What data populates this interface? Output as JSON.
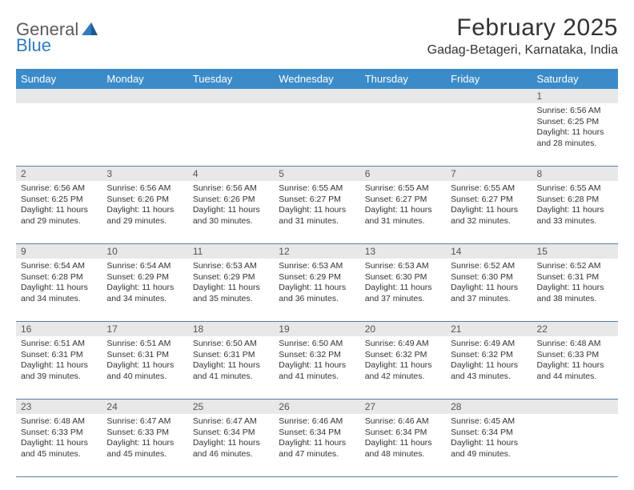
{
  "logo": {
    "text1": "General",
    "text2": "Blue"
  },
  "header": {
    "month_title": "February 2025",
    "location": "Gadag-Betageri, Karnataka, India"
  },
  "colors": {
    "header_bg": "#3b8bc9",
    "header_text": "#ffffff",
    "daynum_bg": "#e8e8e8",
    "week_border": "#5a7fa5",
    "page_bg": "#ffffff",
    "text": "#333333",
    "logo_gray": "#5a5a5a",
    "logo_blue": "#2f7bbf"
  },
  "day_headers": [
    "Sunday",
    "Monday",
    "Tuesday",
    "Wednesday",
    "Thursday",
    "Friday",
    "Saturday"
  ],
  "weeks": [
    [
      {
        "num": "",
        "sunrise": "",
        "sunset": "",
        "daylight": ""
      },
      {
        "num": "",
        "sunrise": "",
        "sunset": "",
        "daylight": ""
      },
      {
        "num": "",
        "sunrise": "",
        "sunset": "",
        "daylight": ""
      },
      {
        "num": "",
        "sunrise": "",
        "sunset": "",
        "daylight": ""
      },
      {
        "num": "",
        "sunrise": "",
        "sunset": "",
        "daylight": ""
      },
      {
        "num": "",
        "sunrise": "",
        "sunset": "",
        "daylight": ""
      },
      {
        "num": "1",
        "sunrise": "Sunrise: 6:56 AM",
        "sunset": "Sunset: 6:25 PM",
        "daylight": "Daylight: 11 hours and 28 minutes."
      }
    ],
    [
      {
        "num": "2",
        "sunrise": "Sunrise: 6:56 AM",
        "sunset": "Sunset: 6:25 PM",
        "daylight": "Daylight: 11 hours and 29 minutes."
      },
      {
        "num": "3",
        "sunrise": "Sunrise: 6:56 AM",
        "sunset": "Sunset: 6:26 PM",
        "daylight": "Daylight: 11 hours and 29 minutes."
      },
      {
        "num": "4",
        "sunrise": "Sunrise: 6:56 AM",
        "sunset": "Sunset: 6:26 PM",
        "daylight": "Daylight: 11 hours and 30 minutes."
      },
      {
        "num": "5",
        "sunrise": "Sunrise: 6:55 AM",
        "sunset": "Sunset: 6:27 PM",
        "daylight": "Daylight: 11 hours and 31 minutes."
      },
      {
        "num": "6",
        "sunrise": "Sunrise: 6:55 AM",
        "sunset": "Sunset: 6:27 PM",
        "daylight": "Daylight: 11 hours and 31 minutes."
      },
      {
        "num": "7",
        "sunrise": "Sunrise: 6:55 AM",
        "sunset": "Sunset: 6:27 PM",
        "daylight": "Daylight: 11 hours and 32 minutes."
      },
      {
        "num": "8",
        "sunrise": "Sunrise: 6:55 AM",
        "sunset": "Sunset: 6:28 PM",
        "daylight": "Daylight: 11 hours and 33 minutes."
      }
    ],
    [
      {
        "num": "9",
        "sunrise": "Sunrise: 6:54 AM",
        "sunset": "Sunset: 6:28 PM",
        "daylight": "Daylight: 11 hours and 34 minutes."
      },
      {
        "num": "10",
        "sunrise": "Sunrise: 6:54 AM",
        "sunset": "Sunset: 6:29 PM",
        "daylight": "Daylight: 11 hours and 34 minutes."
      },
      {
        "num": "11",
        "sunrise": "Sunrise: 6:53 AM",
        "sunset": "Sunset: 6:29 PM",
        "daylight": "Daylight: 11 hours and 35 minutes."
      },
      {
        "num": "12",
        "sunrise": "Sunrise: 6:53 AM",
        "sunset": "Sunset: 6:29 PM",
        "daylight": "Daylight: 11 hours and 36 minutes."
      },
      {
        "num": "13",
        "sunrise": "Sunrise: 6:53 AM",
        "sunset": "Sunset: 6:30 PM",
        "daylight": "Daylight: 11 hours and 37 minutes."
      },
      {
        "num": "14",
        "sunrise": "Sunrise: 6:52 AM",
        "sunset": "Sunset: 6:30 PM",
        "daylight": "Daylight: 11 hours and 37 minutes."
      },
      {
        "num": "15",
        "sunrise": "Sunrise: 6:52 AM",
        "sunset": "Sunset: 6:31 PM",
        "daylight": "Daylight: 11 hours and 38 minutes."
      }
    ],
    [
      {
        "num": "16",
        "sunrise": "Sunrise: 6:51 AM",
        "sunset": "Sunset: 6:31 PM",
        "daylight": "Daylight: 11 hours and 39 minutes."
      },
      {
        "num": "17",
        "sunrise": "Sunrise: 6:51 AM",
        "sunset": "Sunset: 6:31 PM",
        "daylight": "Daylight: 11 hours and 40 minutes."
      },
      {
        "num": "18",
        "sunrise": "Sunrise: 6:50 AM",
        "sunset": "Sunset: 6:31 PM",
        "daylight": "Daylight: 11 hours and 41 minutes."
      },
      {
        "num": "19",
        "sunrise": "Sunrise: 6:50 AM",
        "sunset": "Sunset: 6:32 PM",
        "daylight": "Daylight: 11 hours and 41 minutes."
      },
      {
        "num": "20",
        "sunrise": "Sunrise: 6:49 AM",
        "sunset": "Sunset: 6:32 PM",
        "daylight": "Daylight: 11 hours and 42 minutes."
      },
      {
        "num": "21",
        "sunrise": "Sunrise: 6:49 AM",
        "sunset": "Sunset: 6:32 PM",
        "daylight": "Daylight: 11 hours and 43 minutes."
      },
      {
        "num": "22",
        "sunrise": "Sunrise: 6:48 AM",
        "sunset": "Sunset: 6:33 PM",
        "daylight": "Daylight: 11 hours and 44 minutes."
      }
    ],
    [
      {
        "num": "23",
        "sunrise": "Sunrise: 6:48 AM",
        "sunset": "Sunset: 6:33 PM",
        "daylight": "Daylight: 11 hours and 45 minutes."
      },
      {
        "num": "24",
        "sunrise": "Sunrise: 6:47 AM",
        "sunset": "Sunset: 6:33 PM",
        "daylight": "Daylight: 11 hours and 45 minutes."
      },
      {
        "num": "25",
        "sunrise": "Sunrise: 6:47 AM",
        "sunset": "Sunset: 6:34 PM",
        "daylight": "Daylight: 11 hours and 46 minutes."
      },
      {
        "num": "26",
        "sunrise": "Sunrise: 6:46 AM",
        "sunset": "Sunset: 6:34 PM",
        "daylight": "Daylight: 11 hours and 47 minutes."
      },
      {
        "num": "27",
        "sunrise": "Sunrise: 6:46 AM",
        "sunset": "Sunset: 6:34 PM",
        "daylight": "Daylight: 11 hours and 48 minutes."
      },
      {
        "num": "28",
        "sunrise": "Sunrise: 6:45 AM",
        "sunset": "Sunset: 6:34 PM",
        "daylight": "Daylight: 11 hours and 49 minutes."
      },
      {
        "num": "",
        "sunrise": "",
        "sunset": "",
        "daylight": ""
      }
    ]
  ]
}
